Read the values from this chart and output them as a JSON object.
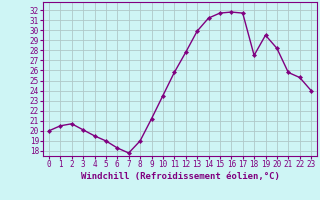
{
  "x": [
    0,
    1,
    2,
    3,
    4,
    5,
    6,
    7,
    8,
    9,
    10,
    11,
    12,
    13,
    14,
    15,
    16,
    17,
    18,
    19,
    20,
    21,
    22,
    23
  ],
  "y": [
    20.0,
    20.5,
    20.7,
    20.1,
    19.5,
    19.0,
    18.3,
    17.8,
    19.0,
    21.2,
    23.5,
    25.8,
    27.8,
    29.9,
    31.2,
    31.7,
    31.8,
    31.7,
    27.5,
    29.5,
    28.2,
    25.8,
    25.3,
    24.0
  ],
  "line_color": "#800080",
  "marker": "D",
  "markersize": 2.2,
  "linewidth": 1.0,
  "bg_color": "#cef5f5",
  "grid_color": "#b0c8c8",
  "xlabel": "Windchill (Refroidissement éolien,°C)",
  "ylabel_ticks": [
    18,
    19,
    20,
    21,
    22,
    23,
    24,
    25,
    26,
    27,
    28,
    29,
    30,
    31,
    32
  ],
  "ylim": [
    17.5,
    32.8
  ],
  "xlim": [
    -0.5,
    23.5
  ],
  "tick_fontsize": 5.5,
  "xlabel_fontsize": 6.5
}
